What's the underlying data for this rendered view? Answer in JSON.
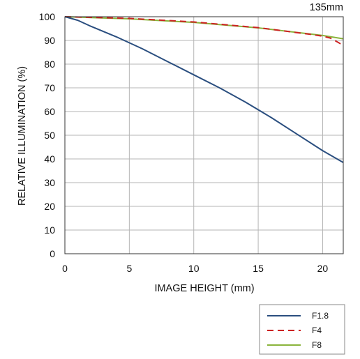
{
  "chart_data": {
    "type": "line",
    "title": "135mm",
    "xlabel": "IMAGE HEIGHT (mm)",
    "ylabel": "RELATIVE ILLUMINATION (%)",
    "xlim": [
      0,
      21.6
    ],
    "ylim": [
      0,
      100
    ],
    "x_ticks": [
      0,
      5,
      10,
      15,
      20
    ],
    "y_ticks": [
      0,
      10,
      20,
      30,
      40,
      50,
      60,
      70,
      80,
      90,
      100
    ],
    "grid": true,
    "legend_position": "bottom-right",
    "series": [
      {
        "name": "F1.8",
        "color": "#2a4e7f",
        "dash": "solid",
        "x": [
          0,
          1,
          2,
          4,
          6,
          8,
          10,
          12,
          14,
          16,
          18,
          20,
          21.6
        ],
        "y": [
          100,
          98.5,
          96,
          91.5,
          86.5,
          81,
          75.5,
          70,
          64,
          57.5,
          50.5,
          43.5,
          38.5
        ]
      },
      {
        "name": "F4",
        "color": "#cc2222",
        "dash": "dashed",
        "x": [
          0,
          5,
          10,
          15,
          19,
          20,
          20.6,
          21.2,
          21.6
        ],
        "y": [
          100,
          99.3,
          97.8,
          95.4,
          92.6,
          91.8,
          91,
          89.2,
          87.8
        ]
      },
      {
        "name": "F8",
        "color": "#8ab43c",
        "dash": "solid",
        "x": [
          0,
          5,
          10,
          15,
          20,
          21.6
        ],
        "y": [
          100,
          99.1,
          97.6,
          95.3,
          92.1,
          90.7
        ]
      }
    ]
  }
}
